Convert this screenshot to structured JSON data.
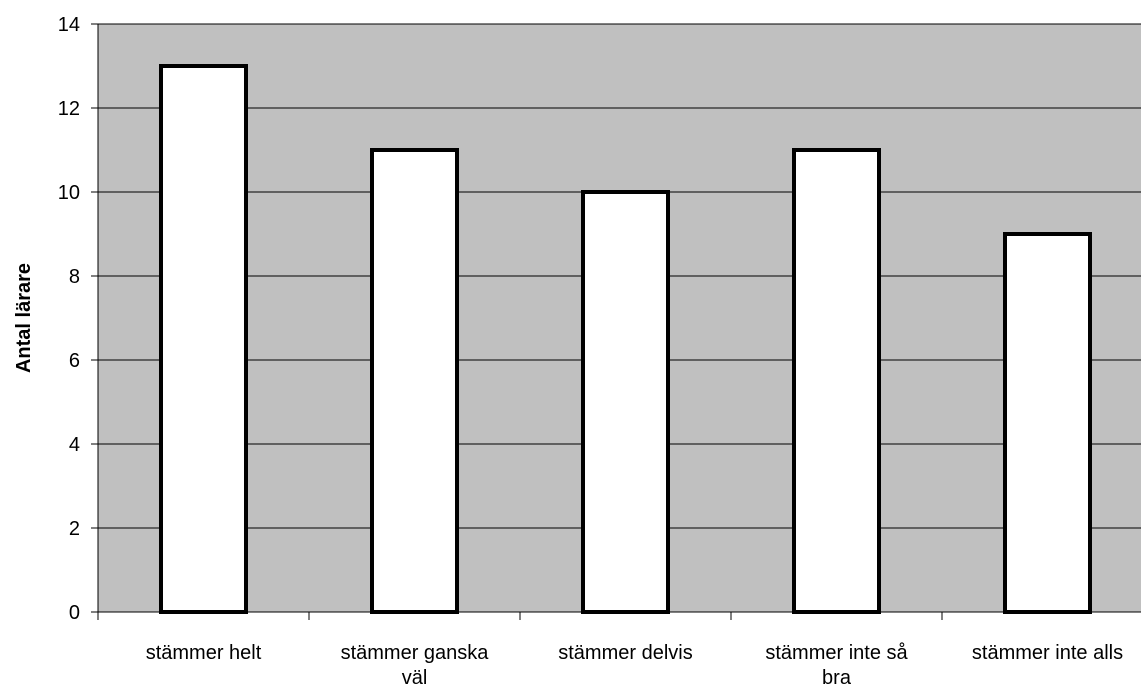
{
  "chart_data": {
    "type": "bar",
    "title": "",
    "xlabel": "",
    "ylabel": "Antal lärare",
    "categories": [
      [
        "stämmer helt"
      ],
      [
        "stämmer ganska",
        "väl"
      ],
      [
        "stämmer delvis"
      ],
      [
        "stämmer inte så",
        "bra"
      ],
      [
        "stämmer inte alls"
      ]
    ],
    "values": [
      13,
      11,
      10,
      11,
      9
    ],
    "ylim": [
      0,
      14
    ],
    "yticks": [
      "0",
      "2",
      "4",
      "6",
      "8",
      "10",
      "12",
      "14"
    ],
    "grid": true,
    "legend": "none",
    "colors": {
      "plot_background": "#c0c0c0",
      "bar_fill": "#ffffff",
      "bar_stroke": "#000000",
      "gridline": "#000000",
      "axis": "#000000"
    }
  }
}
